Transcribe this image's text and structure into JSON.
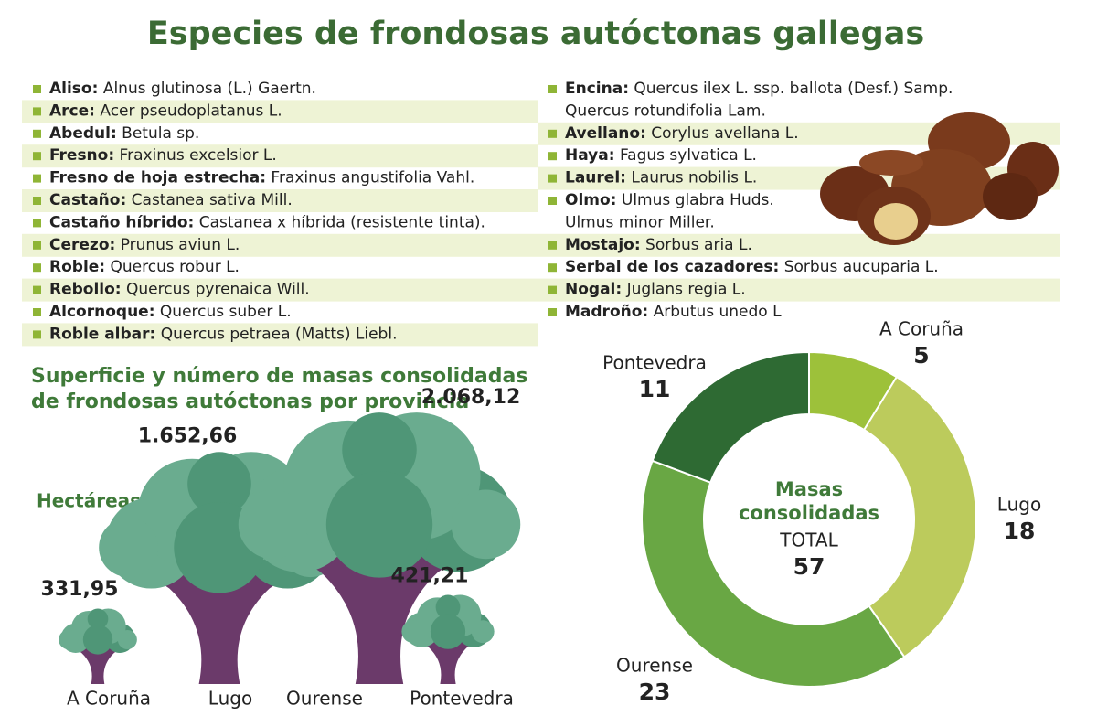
{
  "title": "Especies de frondosas autóctonas gallegas",
  "species_left": [
    {
      "name": "Aliso:",
      "species": [
        "Alnus glutinosa (L.) Gaertn."
      ]
    },
    {
      "name": "Arce:",
      "species": [
        "Acer pseudoplatanus L."
      ]
    },
    {
      "name": "Abedul:",
      "species": [
        "Betula sp."
      ]
    },
    {
      "name": "Fresno:",
      "species": [
        "Fraxinus excelsior L."
      ]
    },
    {
      "name": "Fresno de hoja estrecha:",
      "species": [
        "Fraxinus angustifolia Vahl."
      ]
    },
    {
      "name": "Castaño:",
      "species": [
        "Castanea sativa Mill."
      ]
    },
    {
      "name": "Castaño híbrido:",
      "species": [
        "Castanea x híbrida (resistente tinta)."
      ]
    },
    {
      "name": "Cerezo:",
      "species": [
        "Prunus aviun L."
      ]
    },
    {
      "name": "Roble:",
      "species": [
        "Quercus robur L."
      ]
    },
    {
      "name": "Rebollo:",
      "species": [
        "Quercus pyrenaica Will."
      ]
    },
    {
      "name": "Alcornoque:",
      "species": [
        "Quercus suber L."
      ]
    },
    {
      "name": "Roble albar:",
      "species": [
        "Quercus petraea (Matts) Liebl."
      ]
    }
  ],
  "species_right": [
    {
      "name": "Encina:",
      "species": [
        "Quercus ilex L. ssp. ballota (Desf.) Samp.",
        "Quercus rotundifolia Lam."
      ]
    },
    {
      "name": "Avellano:",
      "species": [
        "Corylus avellana L."
      ]
    },
    {
      "name": "Haya:",
      "species": [
        "Fagus sylvatica L."
      ]
    },
    {
      "name": "Laurel:",
      "species": [
        "Laurus nobilis L."
      ]
    },
    {
      "name": "Olmo:",
      "species": [
        "Ulmus glabra Huds.",
        "Ulmus minor Miller."
      ]
    },
    {
      "name": "Mostajo:",
      "species": [
        "Sorbus aria L."
      ]
    },
    {
      "name": "Serbal de los cazadores:",
      "species": [
        "Sorbus aucuparia L."
      ]
    },
    {
      "name": "Nogal:",
      "species": [
        "Juglans regia L."
      ]
    },
    {
      "name": "Madroño:",
      "species": [
        "Arbutus unedo L"
      ]
    }
  ],
  "chart_data": [
    {
      "type": "pictogram",
      "title": "Superficie y número de masas consolidadas de frondosas autóctonas por provincia",
      "unit_label": "Hectáreas",
      "categories": [
        "A Coruña",
        "Lugo",
        "Ourense",
        "Pontevedra"
      ],
      "values": [
        331.95,
        1652.66,
        2068.12,
        421.21
      ],
      "value_labels": [
        "331,95",
        "1.652,66",
        "2.068,12",
        "421,21"
      ],
      "colors": {
        "canopy": "#6aac8f",
        "canopy_dark": "#4f9677",
        "trunk": "#6b3a6a"
      }
    },
    {
      "type": "donut",
      "categories": [
        "A Coruña",
        "Lugo",
        "Ourense",
        "Pontevedra"
      ],
      "values": [
        5,
        18,
        23,
        11
      ],
      "colors": [
        "#9dc13a",
        "#bccb5c",
        "#69a744",
        "#2e6a33"
      ],
      "center_label": [
        "Masas",
        "consolidadas"
      ],
      "total_label": "TOTAL",
      "total": 57
    }
  ]
}
